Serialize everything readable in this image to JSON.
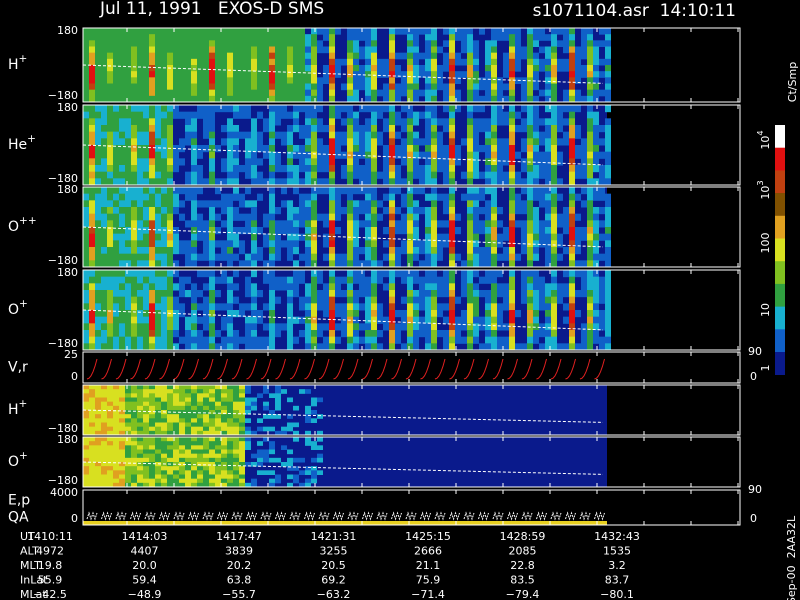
{
  "header": {
    "title": "Jul 11, 1991   EXOS-D SMS",
    "file": "s1071104.asr  14:10:11"
  },
  "panels": [
    {
      "label": {
        "base": "H",
        "sup": "+"
      },
      "top": "180",
      "bottom": "−180"
    },
    {
      "label": {
        "base": "He",
        "sup": "+"
      },
      "top": "180",
      "bottom": "−180"
    },
    {
      "label": {
        "base": "O",
        "sup": "++"
      },
      "top": "180",
      "bottom": "−180"
    },
    {
      "label": {
        "base": "O",
        "sup": "+"
      },
      "top": "180",
      "bottom": "−180"
    },
    {
      "label": {
        "base": "V,r",
        "sup": ""
      },
      "top": "25",
      "bottom": "0",
      "right_top": "90",
      "right_bottom": "0"
    },
    {
      "label": {
        "base": "H",
        "sup": "+"
      },
      "top": "",
      "bottom": "−180"
    },
    {
      "label": {
        "base": "O",
        "sup": "+"
      },
      "top": "180",
      "bottom": "−180"
    },
    {
      "label": {
        "base": "E,p",
        "sup": ""
      },
      "label2": "QA",
      "top": "4000",
      "bottom": "0",
      "right_top": "90",
      "right_bottom": "0"
    }
  ],
  "colorbar": {
    "unit": "Ct/Smp",
    "ticks": [
      {
        "base": "10",
        "sup": "4"
      },
      {
        "base": "10",
        "sup": "3"
      },
      {
        "base": "100",
        "sup": ""
      },
      {
        "base": "10",
        "sup": ""
      },
      {
        "base": "1",
        "sup": ""
      }
    ]
  },
  "table": {
    "rows": [
      [
        "UT",
        "1410:11",
        "1414:03",
        "1417:47",
        "1421:31",
        "1425:15",
        "1428:59",
        "1432:43"
      ],
      [
        "ALT",
        "4972",
        "4407",
        "3839",
        "3255",
        "2666",
        "2085",
        "1535"
      ],
      [
        "MLT",
        "19.8",
        "20.0",
        "20.2",
        "20.5",
        "21.1",
        "22.8",
        "3.2"
      ],
      [
        "InLat",
        "55.9",
        "59.4",
        "63.8",
        "69.2",
        "75.9",
        "83.5",
        "83.7"
      ],
      [
        "MLat",
        "−42.5",
        "−48.9",
        "−55.7",
        "−63.2",
        "−71.4",
        "−79.4",
        "−80.1"
      ]
    ]
  },
  "footer": "Sep-00  2AA32L"
}
